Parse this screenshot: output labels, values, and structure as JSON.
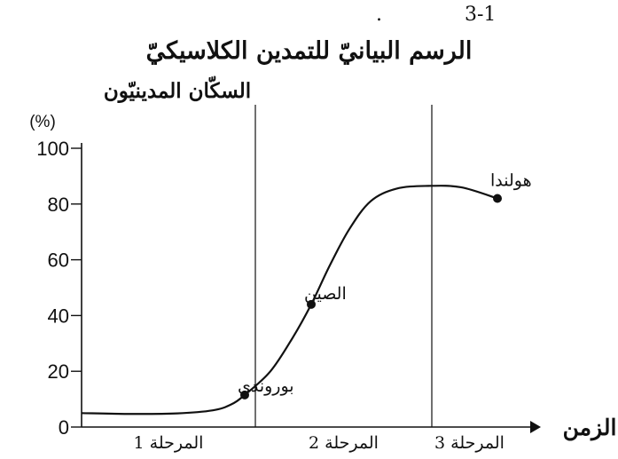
{
  "figure": {
    "number": "3-1",
    "dot": "."
  },
  "chart_data": {
    "type": "line",
    "title": "الرسم البيانيّ للتمدين الكلاسيكيّ",
    "ylabel": "السكّان المدينيّون",
    "yunit": "(%)",
    "xlabel": "الزمن",
    "ylim": [
      0,
      100
    ],
    "yticks": [
      0,
      20,
      40,
      60,
      80,
      100
    ],
    "phases": [
      "المرحلة 1",
      "المرحلة 2",
      "المرحلة 3"
    ],
    "curve_y": [
      5,
      4.7,
      4.9,
      6,
      8,
      11.5,
      20,
      32,
      44,
      58,
      71,
      81,
      85.5,
      86.5,
      86,
      82
    ],
    "points": [
      {
        "label": "بوروندي",
        "y": 11.5
      },
      {
        "label": "الصين",
        "y": 44
      },
      {
        "label": "هولندا",
        "y": 82
      }
    ]
  }
}
